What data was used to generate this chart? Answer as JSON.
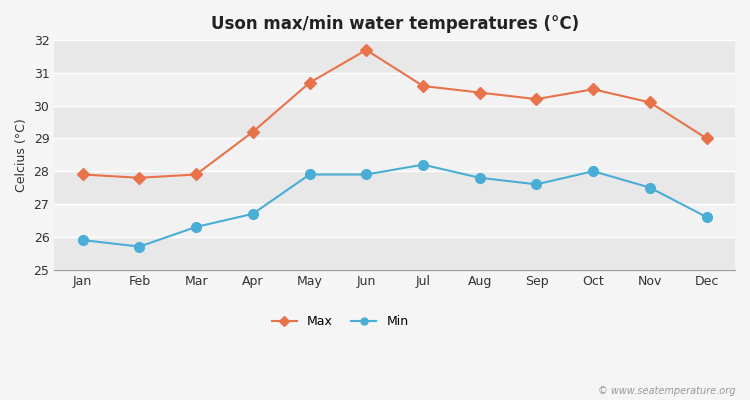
{
  "title": "Uson max/min water temperatures (°C)",
  "ylabel": "Celcius (°C)",
  "months": [
    "Jan",
    "Feb",
    "Mar",
    "Apr",
    "May",
    "Jun",
    "Jul",
    "Aug",
    "Sep",
    "Oct",
    "Nov",
    "Dec"
  ],
  "max_temps": [
    27.9,
    27.8,
    27.9,
    29.2,
    30.7,
    31.7,
    30.6,
    30.4,
    30.2,
    30.5,
    30.1,
    29.0
  ],
  "min_temps": [
    25.9,
    25.7,
    26.3,
    26.7,
    27.9,
    27.9,
    28.2,
    27.8,
    27.6,
    28.0,
    27.5,
    26.6
  ],
  "max_color": "#e8724a",
  "min_color": "#4aadd6",
  "bg_color": "#f5f5f5",
  "band_dark": "#e8e8e8",
  "band_light": "#f2f2f2",
  "ylim": [
    25,
    32
  ],
  "yticks": [
    25,
    26,
    27,
    28,
    29,
    30,
    31,
    32
  ],
  "watermark": "© www.seatemperature.org",
  "legend_max": "Max",
  "legend_min": "Min",
  "figsize": [
    7.5,
    4.0
  ],
  "dpi": 100
}
